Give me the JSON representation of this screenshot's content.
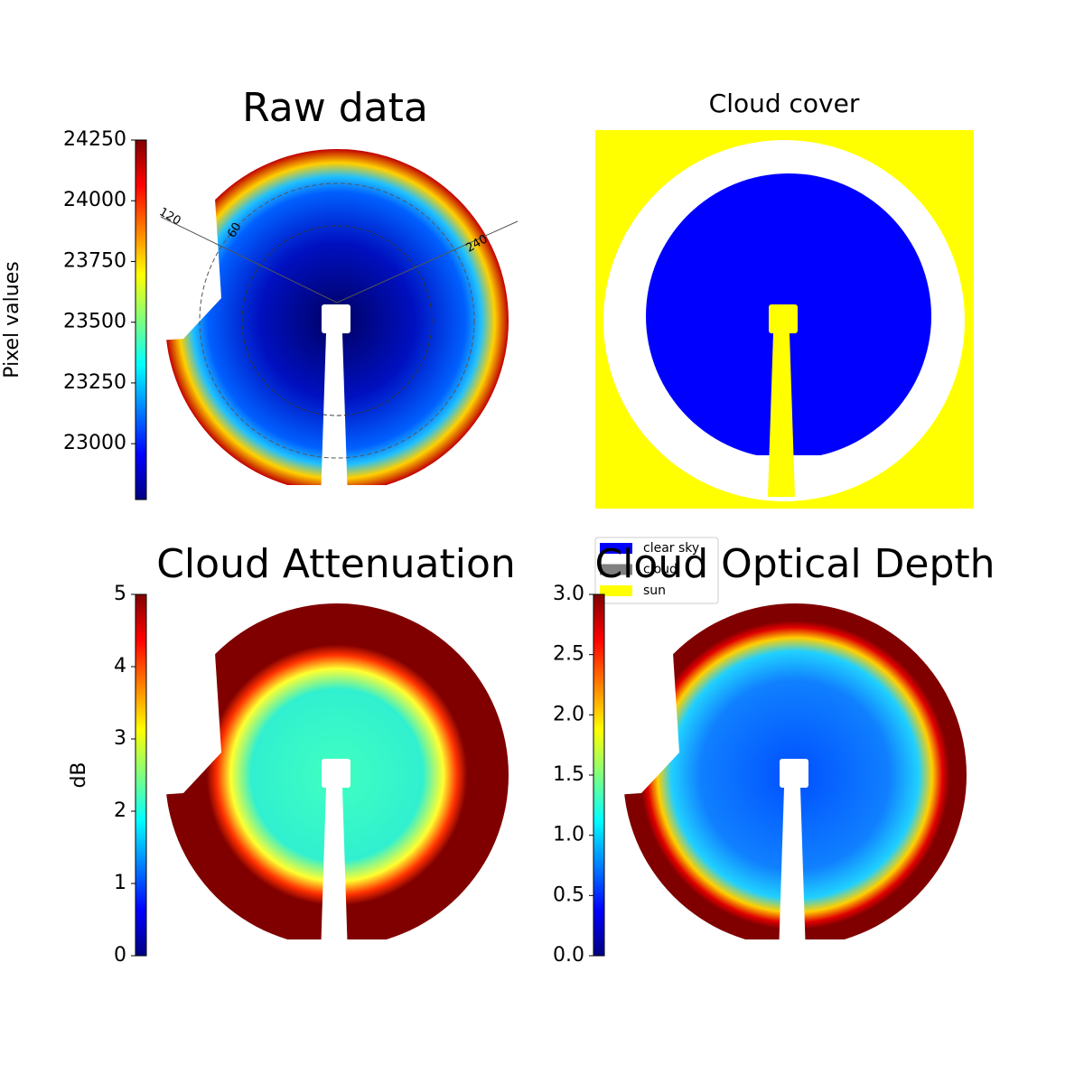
{
  "chart_data": [
    {
      "type": "image",
      "title": "Raw data",
      "colormap": "jet",
      "colorbar_label": "Pixel values",
      "clim": [
        22770,
        24250
      ],
      "cticks": [
        23000,
        23250,
        23500,
        23750,
        24000,
        24250
      ],
      "annotations": [
        "120",
        "60",
        "240"
      ]
    },
    {
      "type": "mask",
      "title": "Cloud cover",
      "legend": [
        {
          "name": "clear sky",
          "color": "#0000ff"
        },
        {
          "name": "cloud",
          "color": "#808080"
        },
        {
          "name": "sun",
          "color": "#ffff00"
        }
      ]
    },
    {
      "type": "image",
      "title": "Cloud Attenuation",
      "colormap": "jet",
      "colorbar_label": "dB",
      "clim": [
        0,
        5
      ],
      "cticks": [
        0,
        1,
        2,
        3,
        4,
        5
      ]
    },
    {
      "type": "image",
      "title": "Cloud Optical Depth",
      "colormap": "jet",
      "clim": [
        0,
        3
      ],
      "cticks": [
        {
          "value": 0,
          "label": "0.0"
        },
        0.5,
        {
          "value": 1,
          "label": "1.0"
        },
        1.5,
        {
          "value": 2,
          "label": "2.0"
        },
        2.5,
        {
          "value": 3,
          "label": "3.0"
        }
      ]
    }
  ]
}
